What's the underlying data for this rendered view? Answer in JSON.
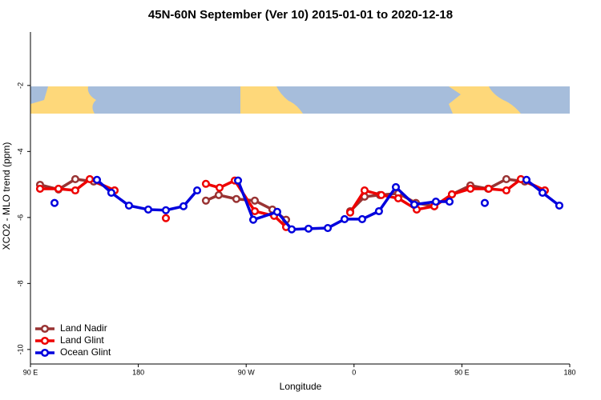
{
  "chart_data": {
    "type": "line",
    "title": "45N-60N September (Ver 10)   2015-01-01 to 2020-12-18",
    "x_label": "Longitude",
    "y_label": "XCO2 - MLO trend (ppm)",
    "xlim": [
      90,
      540
    ],
    "ylim": [
      -10.44,
      -0.38
    ],
    "xticks": [
      {
        "value": 90,
        "label": "90 E"
      },
      {
        "value": 180,
        "label": "180"
      },
      {
        "value": 270,
        "label": "90 W"
      },
      {
        "value": 360,
        "label": "0"
      },
      {
        "value": 450,
        "label": "90 E"
      },
      {
        "value": 540,
        "label": "180"
      }
    ],
    "yticks": [
      -2,
      -4,
      -6,
      -8,
      -10
    ],
    "legend": "bottom-left",
    "series": [
      {
        "name": "Land Nadir",
        "color": "#993333",
        "x": [
          98.0,
          113.4,
          127.4,
          142.8,
          160.2,
          null,
          236.4,
          247.1,
          261.8,
          277.2,
          291.9,
          303.3,
          null,
          356.8,
          368.8,
          381.5,
          396.9,
          411.6,
          427.0,
          441.7,
          457.1,
          471.8,
          487.1,
          502.5,
          519.2
        ],
        "values": [
          -5.01,
          -5.15,
          -4.84,
          -4.91,
          -5.18,
          null,
          -5.49,
          -5.32,
          -5.44,
          -5.49,
          -5.76,
          -6.07,
          null,
          -5.81,
          -5.37,
          -5.32,
          -5.27,
          -5.56,
          -5.66,
          -5.3,
          -5.03,
          -5.13,
          -4.84,
          -4.91,
          -5.18
        ]
      },
      {
        "name": "Land Glint",
        "color": "#ee0000",
        "x": [
          98.0,
          113.4,
          127.4,
          139.5,
          160.2,
          null,
          203.0,
          null,
          236.4,
          247.8,
          260.5,
          277.2,
          293.3,
          303.3,
          null,
          356.8,
          368.8,
          382.8,
          396.9,
          412.3,
          427.0,
          441.7,
          457.1,
          472.4,
          487.1,
          499.2,
          519.2
        ],
        "values": [
          -5.13,
          -5.13,
          -5.18,
          -4.84,
          -5.18,
          null,
          -6.02,
          null,
          -4.98,
          -5.1,
          -4.88,
          -5.81,
          -5.95,
          -6.29,
          null,
          -5.85,
          -5.18,
          -5.32,
          -5.42,
          -5.76,
          -5.66,
          -5.3,
          -5.13,
          -5.13,
          -5.18,
          -4.84,
          -5.18
        ]
      },
      {
        "name": "Ocean Glint",
        "color": "#0000dd",
        "x": [
          110.1,
          null,
          145.5,
          157.5,
          172.2,
          188.3,
          203.0,
          217.7,
          229.1,
          null,
          263.2,
          275.9,
          295.9,
          308.0,
          322.0,
          338.1,
          352.1,
          366.8,
          380.8,
          394.9,
          410.3,
          428.3,
          439.7,
          null,
          469.1,
          null,
          503.9,
          517.3,
          531.3
        ],
        "values": [
          -5.56,
          null,
          -4.86,
          -5.25,
          -5.64,
          -5.76,
          -5.78,
          -5.66,
          -5.18,
          null,
          -4.88,
          -6.07,
          -5.83,
          -6.36,
          -6.34,
          -6.32,
          -6.05,
          -6.05,
          -5.81,
          -5.08,
          -5.61,
          -5.52,
          -5.52,
          null,
          -5.56,
          null,
          -4.86,
          -5.25,
          -5.64
        ]
      }
    ]
  }
}
